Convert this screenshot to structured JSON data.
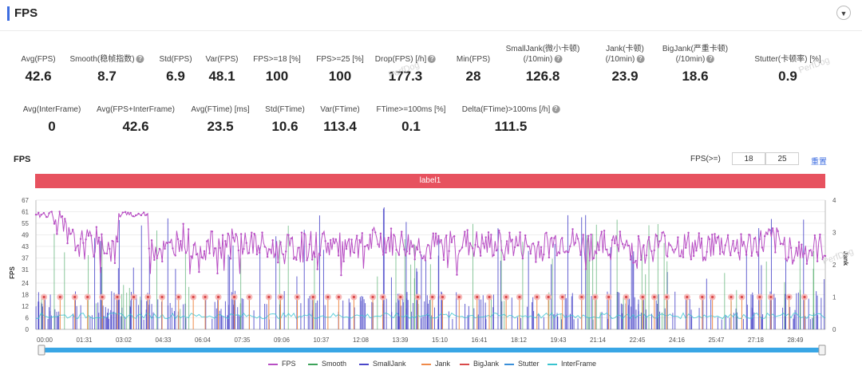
{
  "header": {
    "title": "FPS",
    "collapse_icon": "chevron-down-icon"
  },
  "metrics_row1": [
    {
      "label": "Avg(FPS)",
      "value": "42.6",
      "help": false
    },
    {
      "label": "Smooth(稳帧指数)",
      "value": "8.7",
      "help": true
    },
    {
      "label": "Std(FPS)",
      "value": "6.9",
      "help": false
    },
    {
      "label": "Var(FPS)",
      "value": "48.1",
      "help": false
    },
    {
      "label": "FPS>=18 [%]",
      "value": "100",
      "help": false
    },
    {
      "label": "FPS>=25 [%]",
      "value": "100",
      "help": false
    },
    {
      "label": "Drop(FPS) [/h]",
      "value": "177.3",
      "help": true
    },
    {
      "label": "Min(FPS)",
      "value": "28",
      "help": false
    },
    {
      "label": "SmallJank(微小卡顿)\n(/10min)",
      "value": "126.8",
      "help": true
    },
    {
      "label": "Jank(卡顿)\n(/10min)",
      "value": "23.9",
      "help": true
    },
    {
      "label": "BigJank(严重卡顿)\n(/10min)",
      "value": "18.6",
      "help": true
    },
    {
      "label": "Stutter(卡顿率) [%]",
      "value": "0.9",
      "help": false
    }
  ],
  "metrics_row2": [
    {
      "label": "Avg(InterFrame)",
      "value": "0",
      "help": false
    },
    {
      "label": "Avg(FPS+InterFrame)",
      "value": "42.6",
      "help": false
    },
    {
      "label": "Avg(FTime) [ms]",
      "value": "23.5",
      "help": false
    },
    {
      "label": "Std(FTime)",
      "value": "10.6",
      "help": false
    },
    {
      "label": "Var(FTime)",
      "value": "113.4",
      "help": false
    },
    {
      "label": "FTime>=100ms [%]",
      "value": "0.1",
      "help": false
    },
    {
      "label": "Delta(FTime)>100ms [/h]",
      "value": "111.5",
      "help": true
    }
  ],
  "chart_section": {
    "title": "FPS",
    "filter_label": "FPS(>=)",
    "filter_value_1": "18",
    "filter_value_2": "25",
    "reset_label": "重置",
    "label_bar": "label1"
  },
  "watermark": "PerfDog",
  "chart_data": {
    "type": "line",
    "title": "FPS",
    "ylabel_left": "FPS",
    "ylabel_right": "Jank",
    "y_left_ticks": [
      0,
      6,
      12,
      18,
      24,
      31,
      37,
      43,
      49,
      55,
      61,
      67
    ],
    "y_left_range": [
      0,
      67
    ],
    "y_right_ticks": [
      0,
      1,
      2,
      3,
      4
    ],
    "y_right_range": [
      0,
      4
    ],
    "x_range_sec": [
      0,
      1800
    ],
    "x_tick_labels": [
      "00:00",
      "01:31",
      "03:02",
      "04:33",
      "06:04",
      "07:35",
      "09:06",
      "10:37",
      "12:08",
      "13:39",
      "15:10",
      "16:41",
      "18:12",
      "19:43",
      "21:14",
      "22:45",
      "24:16",
      "25:47",
      "27:18",
      "28:49"
    ],
    "fps_series_keypoints": {
      "t_sec": [
        0,
        40,
        80,
        120,
        150,
        180,
        210,
        240,
        270,
        300,
        330,
        360,
        420,
        480,
        540,
        600,
        660,
        720,
        780,
        840,
        900,
        960,
        1020,
        1080,
        1140,
        1200,
        1260,
        1320,
        1380,
        1440,
        1500,
        1560,
        1620,
        1680,
        1740,
        1800
      ],
      "fps": [
        59,
        60,
        45,
        44,
        46,
        40,
        58,
        59,
        43,
        40,
        49,
        42,
        44,
        45,
        41,
        42,
        45,
        40,
        46,
        44,
        42,
        45,
        43,
        44,
        42,
        46,
        43,
        44,
        41,
        45,
        42,
        44,
        43,
        46,
        40,
        42
      ],
      "min": 28,
      "avg": 42.6
    },
    "jank_marker_value": 1,
    "series": [
      {
        "name": "FPS",
        "color": "#b84fc4"
      },
      {
        "name": "Smooth",
        "color": "#3da35a"
      },
      {
        "name": "SmallJank",
        "color": "#4b47c9"
      },
      {
        "name": "Jank",
        "color": "#ef8a4a"
      },
      {
        "name": "BigJank",
        "color": "#d94a4a"
      },
      {
        "name": "Stutter",
        "color": "#3a8fd9"
      },
      {
        "name": "InterFrame",
        "color": "#39c3cf"
      }
    ]
  }
}
